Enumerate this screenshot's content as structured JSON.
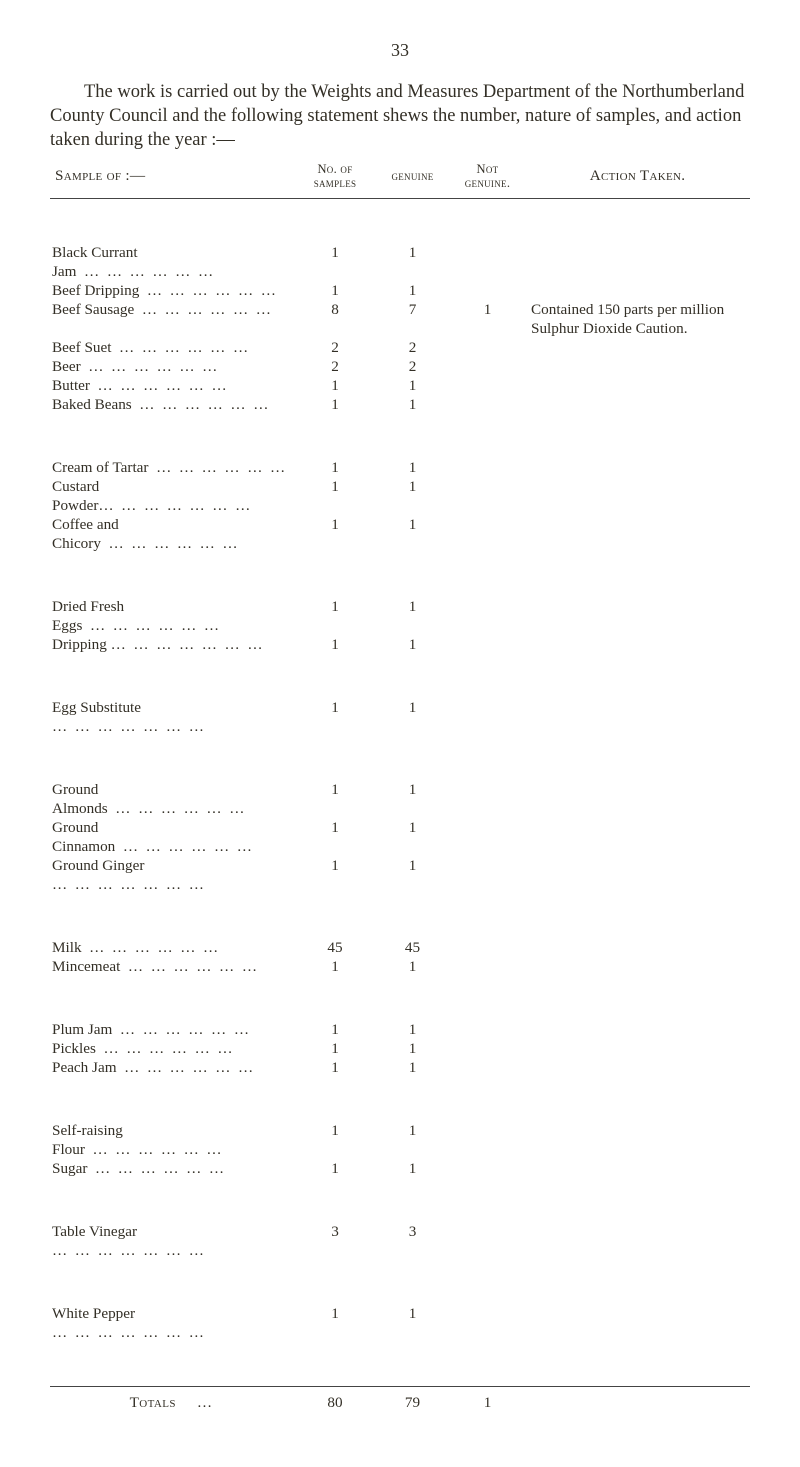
{
  "page_number": "33",
  "intro": "The work is carried out by the Weights and Measures Depart­ment of the Northumberland County Council and the following statement shews the number, nature of samples, and action taken during the year :—",
  "columns": {
    "sample": "Sample of :—",
    "nsamples_a": "No. of",
    "nsamples_b": "samples",
    "genuine": "genuine",
    "not_a": "Not",
    "not_b": "genuine.",
    "action": "Action Taken."
  },
  "groups": [
    {
      "rows": [
        {
          "sample": "Black Currant Jam",
          "n": "1",
          "g": "1",
          "ng": "",
          "a": ""
        },
        {
          "sample": "Beef Dripping",
          "n": "1",
          "g": "1",
          "ng": "",
          "a": ""
        },
        {
          "sample": "Beef Sausage",
          "n": "8",
          "g": "7",
          "ng": "1",
          "a": "Contained 150 parts per million Sulphur Dioxide Caution."
        },
        {
          "sample": "Beef Suet",
          "n": "2",
          "g": "2",
          "ng": "",
          "a": ""
        },
        {
          "sample": "Beer",
          "n": "2",
          "g": "2",
          "ng": "",
          "a": ""
        },
        {
          "sample": "Butter",
          "n": "1",
          "g": "1",
          "ng": "",
          "a": ""
        },
        {
          "sample": "Baked Beans",
          "n": "1",
          "g": "1",
          "ng": "",
          "a": ""
        }
      ]
    },
    {
      "rows": [
        {
          "sample": "Cream of Tartar",
          "n": "1",
          "g": "1",
          "ng": "",
          "a": ""
        },
        {
          "sample": "Custard Powder…",
          "n": "1",
          "g": "1",
          "ng": "",
          "a": ""
        },
        {
          "sample": "Coffee and Chicory",
          "n": "1",
          "g": "1",
          "ng": "",
          "a": ""
        }
      ]
    },
    {
      "rows": [
        {
          "sample": "Dried Fresh Eggs",
          "n": "1",
          "g": "1",
          "ng": "",
          "a": ""
        },
        {
          "sample": "Dripping …",
          "n": "1",
          "g": "1",
          "ng": "",
          "a": ""
        }
      ]
    },
    {
      "rows": [
        {
          "sample": "Egg Substitute …",
          "n": "1",
          "g": "1",
          "ng": "",
          "a": ""
        }
      ]
    },
    {
      "rows": [
        {
          "sample": "Ground Almonds",
          "n": "1",
          "g": "1",
          "ng": "",
          "a": ""
        },
        {
          "sample": "Ground Cinnamon",
          "n": "1",
          "g": "1",
          "ng": "",
          "a": ""
        },
        {
          "sample": "Ground Ginger …",
          "n": "1",
          "g": "1",
          "ng": "",
          "a": ""
        }
      ]
    },
    {
      "rows": [
        {
          "sample": "Milk",
          "n": "45",
          "g": "45",
          "ng": "",
          "a": ""
        },
        {
          "sample": "Mincemeat",
          "n": "1",
          "g": "1",
          "ng": "",
          "a": ""
        }
      ]
    },
    {
      "rows": [
        {
          "sample": "Plum Jam",
          "n": "1",
          "g": "1",
          "ng": "",
          "a": ""
        },
        {
          "sample": "Pickles",
          "n": "1",
          "g": "1",
          "ng": "",
          "a": ""
        },
        {
          "sample": "Peach Jam",
          "n": "1",
          "g": "1",
          "ng": "",
          "a": ""
        }
      ]
    },
    {
      "rows": [
        {
          "sample": "Self-raising Flour",
          "n": "1",
          "g": "1",
          "ng": "",
          "a": ""
        },
        {
          "sample": "Sugar",
          "n": "1",
          "g": "1",
          "ng": "",
          "a": ""
        }
      ]
    },
    {
      "rows": [
        {
          "sample": "Table Vinegar …",
          "n": "3",
          "g": "3",
          "ng": "",
          "a": ""
        }
      ]
    },
    {
      "rows": [
        {
          "sample": "White Pepper …",
          "n": "1",
          "g": "1",
          "ng": "",
          "a": ""
        }
      ]
    }
  ],
  "totals": {
    "label": "Totals",
    "n": "80",
    "g": "79",
    "ng": "1",
    "a": ""
  },
  "dots_a": "…",
  "dots_b": "…"
}
